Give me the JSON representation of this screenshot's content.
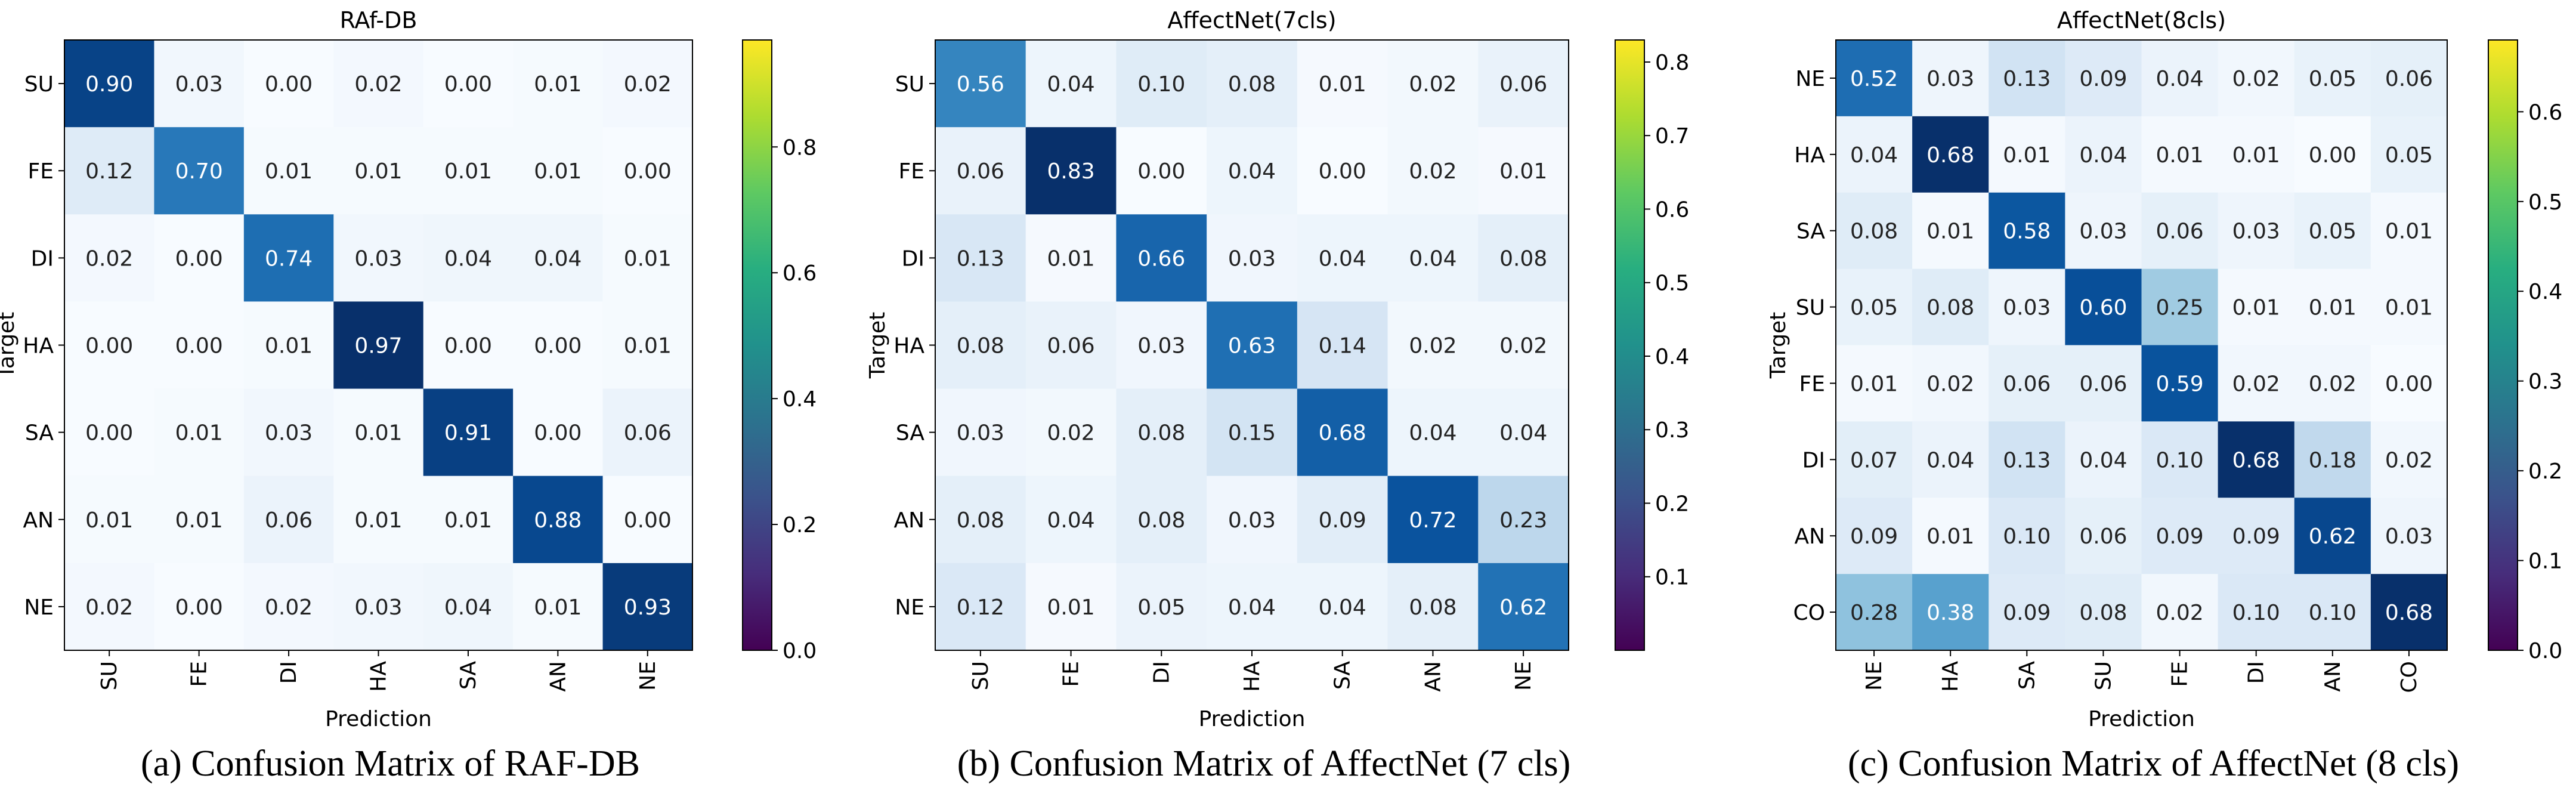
{
  "chart_data": [
    {
      "type": "heatmap",
      "title": "RAf-DB",
      "caption": "(a) Confusion Matrix of RAF-DB",
      "xlabel": "Prediction",
      "ylabel": "Target",
      "x_categories": [
        "SU",
        "FE",
        "DI",
        "HA",
        "SA",
        "AN",
        "NE"
      ],
      "y_categories": [
        "SU",
        "FE",
        "DI",
        "HA",
        "SA",
        "AN",
        "NE"
      ],
      "values": [
        [
          0.9,
          0.03,
          0.0,
          0.02,
          0.0,
          0.01,
          0.02
        ],
        [
          0.12,
          0.7,
          0.01,
          0.01,
          0.01,
          0.01,
          0.0
        ],
        [
          0.02,
          0.0,
          0.74,
          0.03,
          0.04,
          0.04,
          0.01
        ],
        [
          0.0,
          0.0,
          0.01,
          0.97,
          0.0,
          0.0,
          0.01
        ],
        [
          0.0,
          0.01,
          0.03,
          0.01,
          0.91,
          0.0,
          0.06
        ],
        [
          0.01,
          0.01,
          0.06,
          0.01,
          0.01,
          0.88,
          0.0
        ],
        [
          0.02,
          0.0,
          0.02,
          0.03,
          0.04,
          0.01,
          0.93
        ]
      ],
      "vmin": 0.0,
      "vmax": 0.97,
      "colorbar_ticks": [
        "0.0",
        "0.2",
        "0.4",
        "0.6",
        "0.8"
      ],
      "colorbar_tick_values": [
        0.0,
        0.2,
        0.4,
        0.6,
        0.8
      ]
    },
    {
      "type": "heatmap",
      "title": "AffectNet(7cls)",
      "caption": "(b) Confusion Matrix of AffectNet (7 cls)",
      "xlabel": "Prediction",
      "ylabel": "Target",
      "x_categories": [
        "SU",
        "FE",
        "DI",
        "HA",
        "SA",
        "AN",
        "NE"
      ],
      "y_categories": [
        "SU",
        "FE",
        "DI",
        "HA",
        "SA",
        "AN",
        "NE"
      ],
      "values": [
        [
          0.56,
          0.04,
          0.1,
          0.08,
          0.01,
          0.02,
          0.06
        ],
        [
          0.06,
          0.83,
          0.0,
          0.04,
          0.0,
          0.02,
          0.01
        ],
        [
          0.13,
          0.01,
          0.66,
          0.03,
          0.04,
          0.04,
          0.08
        ],
        [
          0.08,
          0.06,
          0.03,
          0.63,
          0.14,
          0.02,
          0.02
        ],
        [
          0.03,
          0.02,
          0.08,
          0.15,
          0.68,
          0.04,
          0.04
        ],
        [
          0.08,
          0.04,
          0.08,
          0.03,
          0.09,
          0.72,
          0.23
        ],
        [
          0.12,
          0.01,
          0.05,
          0.04,
          0.04,
          0.08,
          0.62
        ]
      ],
      "vmin": 0.0,
      "vmax": 0.83,
      "colorbar_ticks": [
        "0.1",
        "0.2",
        "0.3",
        "0.4",
        "0.5",
        "0.6",
        "0.7",
        "0.8"
      ],
      "colorbar_tick_values": [
        0.1,
        0.2,
        0.3,
        0.4,
        0.5,
        0.6,
        0.7,
        0.8
      ]
    },
    {
      "type": "heatmap",
      "title": "AffectNet(8cls)",
      "caption": "(c) Confusion Matrix of AffectNet (8 cls)",
      "xlabel": "Prediction",
      "ylabel": "Target",
      "x_categories": [
        "NE",
        "HA",
        "SA",
        "SU",
        "FE",
        "DI",
        "AN",
        "CO"
      ],
      "y_categories": [
        "NE",
        "HA",
        "SA",
        "SU",
        "FE",
        "DI",
        "AN",
        "CO"
      ],
      "values": [
        [
          0.52,
          0.03,
          0.13,
          0.09,
          0.04,
          0.02,
          0.05,
          0.06
        ],
        [
          0.04,
          0.68,
          0.01,
          0.04,
          0.01,
          0.01,
          0.0,
          0.05
        ],
        [
          0.08,
          0.01,
          0.58,
          0.03,
          0.06,
          0.03,
          0.05,
          0.01
        ],
        [
          0.05,
          0.08,
          0.03,
          0.6,
          0.25,
          0.01,
          0.01,
          0.01
        ],
        [
          0.01,
          0.02,
          0.06,
          0.06,
          0.59,
          0.02,
          0.02,
          0.0
        ],
        [
          0.07,
          0.04,
          0.13,
          0.04,
          0.1,
          0.68,
          0.18,
          0.02
        ],
        [
          0.09,
          0.01,
          0.1,
          0.06,
          0.09,
          0.09,
          0.62,
          0.03
        ],
        [
          0.28,
          0.38,
          0.09,
          0.08,
          0.02,
          0.1,
          0.1,
          0.68
        ]
      ],
      "vmin": 0.0,
      "vmax": 0.68,
      "colorbar_ticks": [
        "0.0",
        "0.1",
        "0.2",
        "0.3",
        "0.4",
        "0.5",
        "0.6"
      ],
      "colorbar_tick_values": [
        0.0,
        0.1,
        0.2,
        0.3,
        0.4,
        0.5,
        0.6
      ]
    }
  ]
}
